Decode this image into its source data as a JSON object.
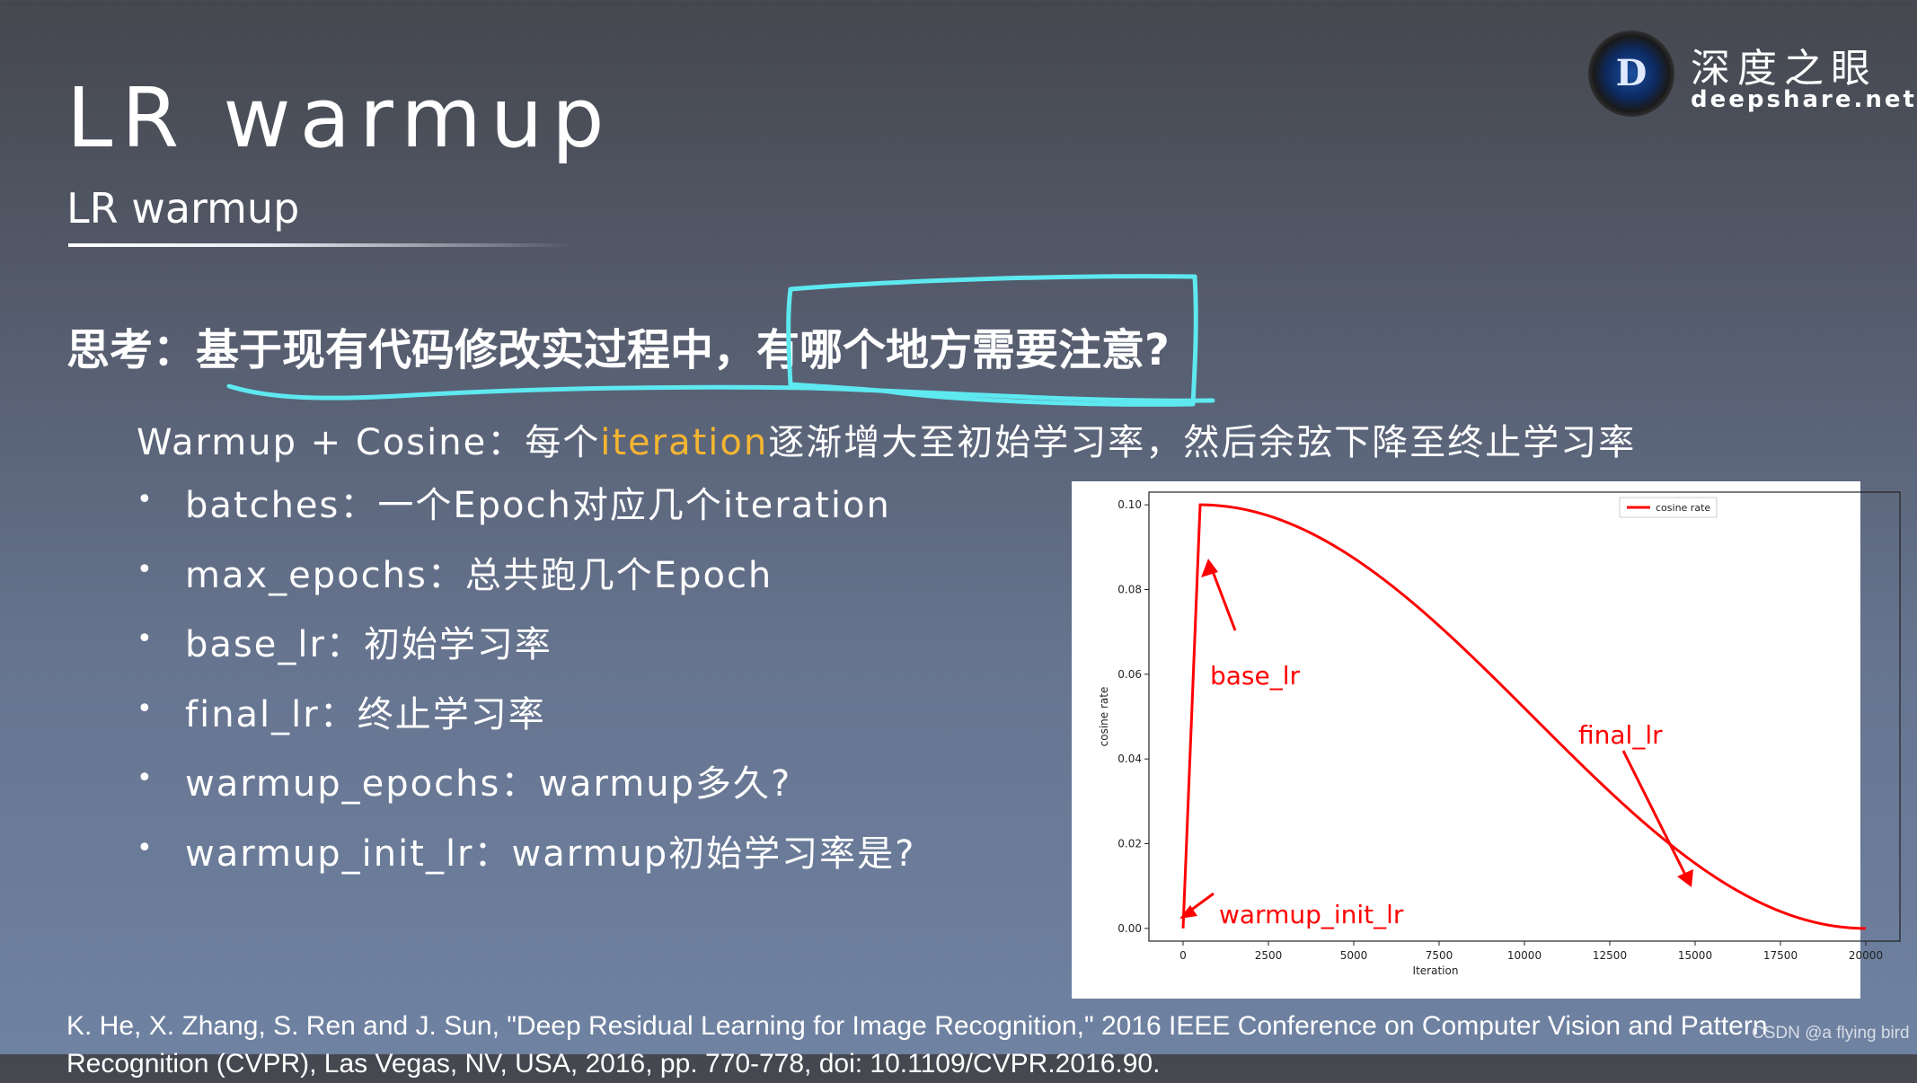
{
  "slide": {
    "title": "LR warmup",
    "subtitle": "LR warmup",
    "brand_cn": "深度之眼",
    "brand_en": "deepshare.net",
    "logo_letter": "D",
    "question": "思考：基于现有代码修改实过程中，有哪个地方需要注意?",
    "warmup_prefix": "Warmup + Cosine：每个",
    "warmup_highlight": "iteration",
    "warmup_suffix": "逐渐增大至初始学习率，然后余弦下降至终止学习率",
    "params": [
      "batches：一个Epoch对应几个iteration",
      "max_epochs：总共跑几个Epoch",
      "base_lr：初始学习率",
      "final_lr：终止学习率",
      "warmup_epochs：warmup多久?",
      "warmup_init_lr：warmup初始学习率是?"
    ],
    "bullet": "•",
    "reference": "K. He, X. Zhang, S. Ren and J. Sun, \"Deep Residual Learning for Image Recognition,\" 2016 IEEE Conference on Computer Vision and Pattern Recognition (CVPR), Las Vegas, NV, USA, 2016, pp. 770-778, doi: 10.1109/CVPR.2016.90.",
    "watermark": "CSDN @a flying bird"
  },
  "colors": {
    "highlight": "#f5b531",
    "annotation_cyan": "#5ee8f0",
    "curve_red": "#ff0000"
  },
  "chart_data": {
    "type": "line",
    "title": "",
    "xlabel": "Iteration",
    "ylabel": "cosine rate",
    "xlim": [
      -1000,
      21000
    ],
    "ylim": [
      -0.003,
      0.103
    ],
    "xticks": [
      0,
      2500,
      5000,
      7500,
      10000,
      12500,
      15000,
      17500,
      20000
    ],
    "yticks": [
      "0.00",
      "0.02",
      "0.04",
      "0.06",
      "0.08",
      "0.10"
    ],
    "grid": false,
    "legend_position": "top-right",
    "series": [
      {
        "name": "cosine rate",
        "color": "#ff0000",
        "warmup_init_lr": 0.0,
        "base_lr": 0.1,
        "final_lr": 0.0,
        "warmup_iters": 500,
        "max_iters": 20000
      }
    ],
    "annotations": [
      "base_lr",
      "final_lr",
      "warmup_init_lr"
    ]
  }
}
